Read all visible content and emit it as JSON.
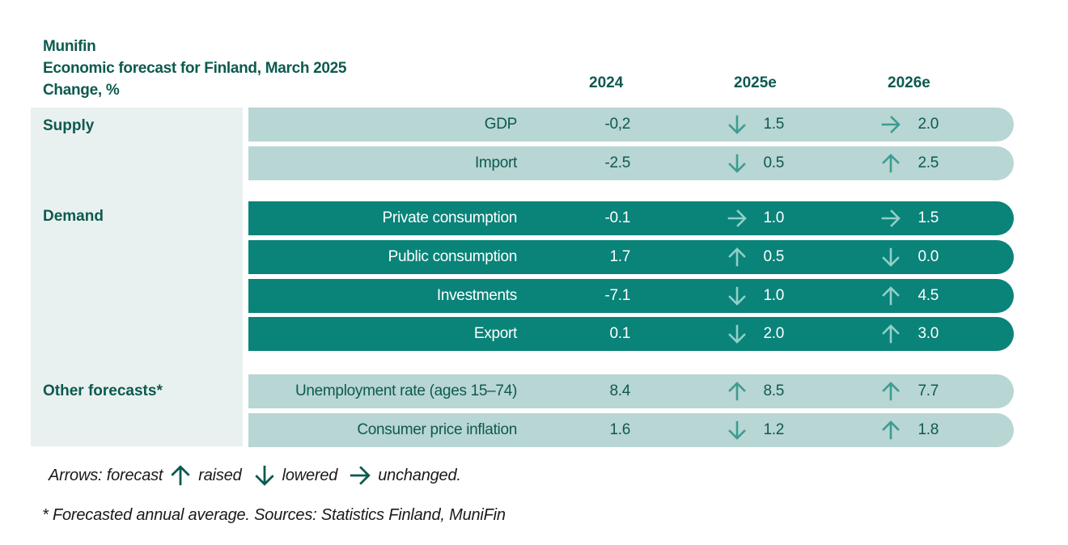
{
  "header": {
    "org": "Munifin",
    "title": "Economic forecast for Finland, March  2025",
    "subtitle": "Change, %"
  },
  "chart_data": {
    "type": "table",
    "columns": [
      "2024",
      "2025e",
      "2026e"
    ],
    "groups": [
      {
        "name": "Supply",
        "rows": [
          {
            "label": "GDP",
            "v2024": "-0,2",
            "v2025": "1.5",
            "arrow2025": "lowered",
            "v2026": "2.0",
            "arrow2026": "unchanged"
          },
          {
            "label": "Import",
            "v2024": "-2.5",
            "v2025": "0.5",
            "arrow2025": "lowered",
            "v2026": "2.5",
            "arrow2026": "raised"
          }
        ]
      },
      {
        "name": "Demand",
        "rows": [
          {
            "label": "Private consumption",
            "v2024": "-0.1",
            "v2025": "1.0",
            "arrow2025": "unchanged",
            "v2026": "1.5",
            "arrow2026": "unchanged"
          },
          {
            "label": "Public consumption",
            "v2024": "1.7",
            "v2025": "0.5",
            "arrow2025": "raised",
            "v2026": "0.0",
            "arrow2026": "lowered"
          },
          {
            "label": "Investments",
            "v2024": "-7.1",
            "v2025": "1.0",
            "arrow2025": "lowered",
            "v2026": "4.5",
            "arrow2026": "raised"
          },
          {
            "label": "Export",
            "v2024": "0.1",
            "v2025": "2.0",
            "arrow2025": "lowered",
            "v2026": "3.0",
            "arrow2026": "raised"
          }
        ]
      },
      {
        "name": "Other forecasts*",
        "rows": [
          {
            "label": "Unemployment rate (ages 15–74)",
            "v2024": "8.4",
            "v2025": "8.5",
            "arrow2025": "raised",
            "v2026": "7.7",
            "arrow2026": "raised"
          },
          {
            "label": "Consumer price inflation",
            "v2024": "1.6",
            "v2025": "1.2",
            "arrow2025": "lowered",
            "v2026": "1.8",
            "arrow2026": "raised"
          }
        ]
      }
    ]
  },
  "legend": {
    "prefix": "Arrows: forecast",
    "raised": "raised",
    "lowered": "lowered",
    "unchanged": "unchanged."
  },
  "footnote": "* Forecasted annual average. Sources: Statistics Finland, MuniFin",
  "colors": {
    "light_row": "#b8d6d3",
    "dark_row": "#0a8379",
    "text_dark_green": "#0d5a4f",
    "left_panel": "#e9f1f0"
  }
}
